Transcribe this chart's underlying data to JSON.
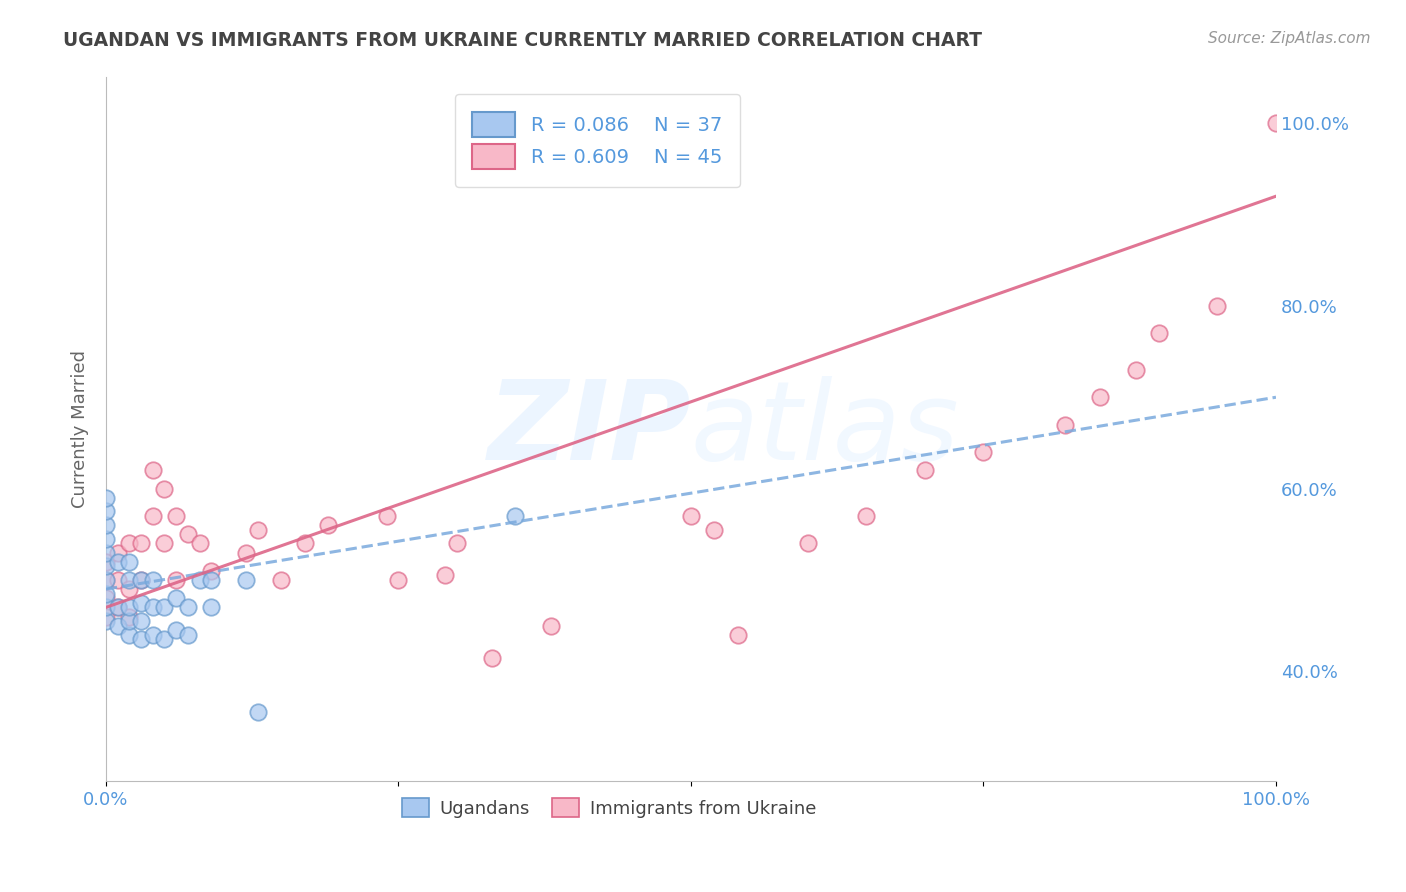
{
  "title": "UGANDAN VS IMMIGRANTS FROM UKRAINE CURRENTLY MARRIED CORRELATION CHART",
  "source": "Source: ZipAtlas.com",
  "ylabel": "Currently Married",
  "xlim": [
    0.0,
    1.0
  ],
  "ylim": [
    0.28,
    1.05
  ],
  "xtick_pos": [
    0.0,
    0.25,
    0.5,
    0.75,
    1.0
  ],
  "xtick_labels": [
    "0.0%",
    "",
    "",
    "",
    "100.0%"
  ],
  "ytick_labels_right": [
    "40.0%",
    "60.0%",
    "80.0%",
    "100.0%"
  ],
  "ytick_positions_right": [
    0.4,
    0.6,
    0.8,
    1.0
  ],
  "legend_r1": "R = 0.086",
  "legend_n1": "N = 37",
  "legend_r2": "R = 0.609",
  "legend_n2": "N = 45",
  "color_ugandan_fill": "#A8C8F0",
  "color_ugandan_edge": "#6699CC",
  "color_ukraine_fill": "#F8B8C8",
  "color_ukraine_edge": "#DD6688",
  "color_line_uganda": "#7AAADD",
  "color_line_ukraine": "#DD6688",
  "background": "#FFFFFF",
  "grid_color": "#CCCCCC",
  "title_color": "#444444",
  "axis_label_color": "#666666",
  "right_tick_color": "#5599DD",
  "legend_text_color": "#5599DD",
  "watermark_color": "#DDDDEE",
  "ugandan_x": [
    0.0,
    0.0,
    0.0,
    0.0,
    0.0,
    0.0,
    0.0,
    0.0,
    0.0,
    0.0,
    0.01,
    0.01,
    0.01,
    0.02,
    0.02,
    0.02,
    0.02,
    0.02,
    0.03,
    0.03,
    0.03,
    0.03,
    0.04,
    0.04,
    0.04,
    0.05,
    0.05,
    0.06,
    0.06,
    0.07,
    0.07,
    0.08,
    0.09,
    0.09,
    0.12,
    0.13,
    0.35
  ],
  "ugandan_y": [
    0.455,
    0.47,
    0.485,
    0.5,
    0.515,
    0.53,
    0.545,
    0.56,
    0.575,
    0.59,
    0.45,
    0.47,
    0.52,
    0.44,
    0.455,
    0.47,
    0.5,
    0.52,
    0.435,
    0.455,
    0.475,
    0.5,
    0.44,
    0.47,
    0.5,
    0.435,
    0.47,
    0.445,
    0.48,
    0.44,
    0.47,
    0.5,
    0.47,
    0.5,
    0.5,
    0.355,
    0.57
  ],
  "ukraine_x": [
    0.0,
    0.0,
    0.0,
    0.0,
    0.01,
    0.01,
    0.01,
    0.02,
    0.02,
    0.02,
    0.03,
    0.03,
    0.04,
    0.04,
    0.05,
    0.05,
    0.06,
    0.06,
    0.07,
    0.08,
    0.09,
    0.12,
    0.13,
    0.17,
    0.19,
    0.24,
    0.25,
    0.3,
    0.33,
    0.5,
    0.54,
    0.6,
    0.65,
    0.7,
    0.75,
    0.82,
    0.85,
    0.88,
    0.9,
    0.95,
    1.0,
    0.52,
    0.38,
    0.29,
    0.15
  ],
  "ukraine_y": [
    0.46,
    0.48,
    0.5,
    0.52,
    0.47,
    0.5,
    0.53,
    0.46,
    0.49,
    0.54,
    0.5,
    0.54,
    0.57,
    0.62,
    0.54,
    0.6,
    0.5,
    0.57,
    0.55,
    0.54,
    0.51,
    0.53,
    0.555,
    0.54,
    0.56,
    0.57,
    0.5,
    0.54,
    0.415,
    0.57,
    0.44,
    0.54,
    0.57,
    0.62,
    0.64,
    0.67,
    0.7,
    0.73,
    0.77,
    0.8,
    1.0,
    0.555,
    0.45,
    0.505,
    0.5
  ],
  "line_uganda_x0": 0.0,
  "line_uganda_x1": 1.0,
  "line_uganda_y0": 0.49,
  "line_uganda_y1": 0.7,
  "line_ukraine_x0": 0.0,
  "line_ukraine_x1": 1.0,
  "line_ukraine_y0": 0.47,
  "line_ukraine_y1": 0.92
}
